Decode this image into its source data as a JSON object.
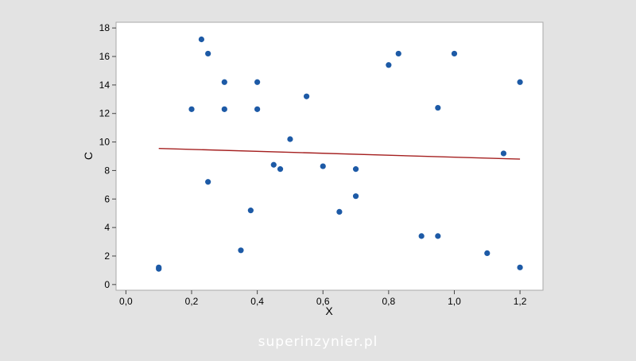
{
  "chart_data": {
    "type": "scatter",
    "title": "",
    "xlabel": "X",
    "ylabel": "C",
    "xlim": [
      -0.03,
      1.27
    ],
    "ylim": [
      -0.4,
      18.4
    ],
    "x_ticks": [
      0.0,
      0.2,
      0.4,
      0.6,
      0.8,
      1.0,
      1.2
    ],
    "x_tick_labels": [
      "0,0",
      "0,2",
      "0,4",
      "0,6",
      "0,8",
      "1,0",
      "1,2"
    ],
    "y_ticks": [
      0,
      2,
      4,
      6,
      8,
      10,
      12,
      14,
      16,
      18
    ],
    "y_tick_labels": [
      "0",
      "2",
      "4",
      "6",
      "8",
      "10",
      "12",
      "14",
      "16",
      "18"
    ],
    "grid": false,
    "legend": "none",
    "series": [
      {
        "kind": "points",
        "color": "#1d5aa6",
        "points": [
          [
            0.1,
            1.1
          ],
          [
            0.1,
            1.2
          ],
          [
            0.2,
            12.3
          ],
          [
            0.23,
            17.2
          ],
          [
            0.25,
            16.2
          ],
          [
            0.25,
            7.2
          ],
          [
            0.3,
            14.2
          ],
          [
            0.3,
            12.3
          ],
          [
            0.35,
            2.4
          ],
          [
            0.38,
            5.2
          ],
          [
            0.4,
            14.2
          ],
          [
            0.4,
            12.3
          ],
          [
            0.45,
            8.4
          ],
          [
            0.47,
            8.1
          ],
          [
            0.5,
            10.2
          ],
          [
            0.55,
            13.2
          ],
          [
            0.6,
            8.3
          ],
          [
            0.65,
            5.1
          ],
          [
            0.7,
            8.1
          ],
          [
            0.7,
            6.2
          ],
          [
            0.8,
            15.4
          ],
          [
            0.83,
            16.2
          ],
          [
            0.9,
            3.4
          ],
          [
            0.95,
            3.4
          ],
          [
            0.95,
            12.4
          ],
          [
            1.0,
            16.2
          ],
          [
            1.1,
            2.2
          ],
          [
            1.15,
            9.2
          ],
          [
            1.2,
            14.2
          ],
          [
            1.2,
            1.2
          ]
        ]
      },
      {
        "kind": "fit-line",
        "color": "#a52020",
        "points": [
          [
            0.1,
            9.55
          ],
          [
            1.2,
            8.8
          ]
        ]
      }
    ]
  },
  "footer": {
    "watermark": "superinzynier.pl"
  }
}
